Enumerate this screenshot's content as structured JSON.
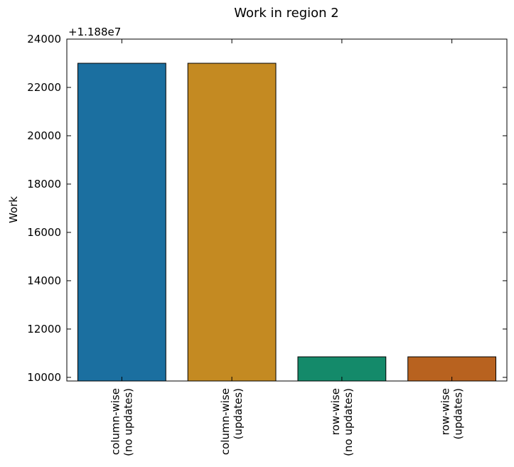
{
  "chart_data": {
    "type": "bar",
    "title": "Work in region 2",
    "ylabel": "Work",
    "xlabel": "",
    "y_offset_label": "+1.188e7",
    "y_offset": 11880000,
    "ylim": [
      11889850,
      11904000
    ],
    "yticks": [
      10000,
      12000,
      14000,
      16000,
      18000,
      20000,
      22000,
      24000
    ],
    "grid": false,
    "categories": [
      [
        "column-wise",
        "(no updates)"
      ],
      [
        "column-wise",
        "(updates)"
      ],
      [
        "row-wise",
        "(no updates)"
      ],
      [
        "row-wise",
        "(updates)"
      ]
    ],
    "values": [
      11903000,
      11903000,
      11890850,
      11890850
    ],
    "colors": [
      "#1b6fa0",
      "#c48a22",
      "#148a6a",
      "#b8621f"
    ]
  }
}
